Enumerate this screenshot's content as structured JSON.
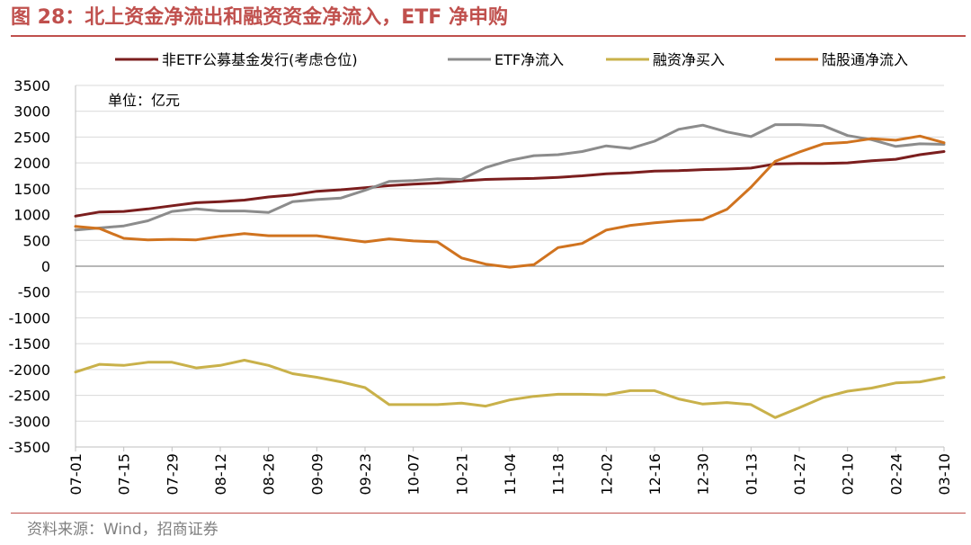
{
  "header": {
    "title": "图 28：北上资金净流出和融资资金净流入，ETF 净申购"
  },
  "footer": {
    "source": "资料来源：Wind，招商证券"
  },
  "chart_data": {
    "type": "line",
    "unit_label": "单位：亿元",
    "ylim": [
      -3500,
      3500
    ],
    "yticks": [
      3500,
      3000,
      2500,
      2000,
      1500,
      1000,
      500,
      0,
      -500,
      -1000,
      -1500,
      -2000,
      -2500,
      -3000,
      -3500
    ],
    "ytick_labels": [
      "3500",
      "3000",
      "2500",
      "2000",
      "1500",
      "1000",
      "500",
      "0",
      "-500",
      "-1000",
      "-1500",
      "-2000",
      "-2500",
      "-3000",
      "-3500"
    ],
    "grid": true,
    "legend_position": "top",
    "x": [
      "07-01",
      "07-08",
      "07-15",
      "07-22",
      "07-29",
      "08-05",
      "08-12",
      "08-19",
      "08-26",
      "09-02",
      "09-09",
      "09-16",
      "09-23",
      "09-30",
      "10-07",
      "10-14",
      "10-21",
      "10-28",
      "11-04",
      "11-11",
      "11-18",
      "11-25",
      "12-02",
      "12-09",
      "12-16",
      "12-23",
      "12-30",
      "01-06",
      "01-13",
      "01-20",
      "01-27",
      "02-03",
      "02-10",
      "02-17",
      "02-24",
      "03-03",
      "03-10"
    ],
    "x_tick_labels": [
      "07-01",
      "07-15",
      "07-29",
      "08-12",
      "08-26",
      "09-09",
      "09-23",
      "10-07",
      "10-21",
      "11-04",
      "11-18",
      "12-02",
      "12-16",
      "12-30",
      "01-13",
      "01-27",
      "02-10",
      "02-24",
      "03-10"
    ],
    "series": [
      {
        "name": "非ETF公募基金发行(考虑仓位)",
        "color": "#7b1e1e",
        "values": [
          970,
          1050,
          1060,
          1110,
          1170,
          1230,
          1250,
          1280,
          1340,
          1380,
          1450,
          1480,
          1520,
          1560,
          1590,
          1610,
          1650,
          1680,
          1690,
          1700,
          1720,
          1750,
          1790,
          1810,
          1840,
          1850,
          1870,
          1880,
          1900,
          1980,
          1990,
          1990,
          2000,
          2040,
          2070,
          2160,
          2220
        ]
      },
      {
        "name": "ETF净流入",
        "color": "#8c8c8c",
        "values": [
          700,
          740,
          780,
          880,
          1060,
          1110,
          1070,
          1070,
          1040,
          1250,
          1290,
          1320,
          1470,
          1640,
          1660,
          1690,
          1680,
          1910,
          2050,
          2140,
          2160,
          2220,
          2330,
          2280,
          2420,
          2650,
          2730,
          2600,
          2510,
          2740,
          2740,
          2720,
          2530,
          2450,
          2320,
          2370,
          2360
        ]
      },
      {
        "name": "融资净买入",
        "color": "#c9b14a",
        "values": [
          -2050,
          -1900,
          -1920,
          -1860,
          -1860,
          -1970,
          -1920,
          -1820,
          -1920,
          -2080,
          -2150,
          -2240,
          -2350,
          -2680,
          -2680,
          -2680,
          -2650,
          -2710,
          -2590,
          -2520,
          -2480,
          -2480,
          -2490,
          -2410,
          -2410,
          -2570,
          -2670,
          -2640,
          -2680,
          -2930,
          -2740,
          -2540,
          -2420,
          -2360,
          -2260,
          -2240,
          -2150
        ]
      },
      {
        "name": "陆股通净流入",
        "color": "#d0731f",
        "values": [
          770,
          730,
          540,
          510,
          520,
          510,
          580,
          630,
          590,
          590,
          590,
          530,
          470,
          530,
          490,
          470,
          160,
          40,
          -20,
          30,
          360,
          440,
          700,
          790,
          840,
          880,
          900,
          1100,
          1530,
          2030,
          2210,
          2370,
          2400,
          2470,
          2440,
          2520,
          2390
        ]
      }
    ]
  }
}
